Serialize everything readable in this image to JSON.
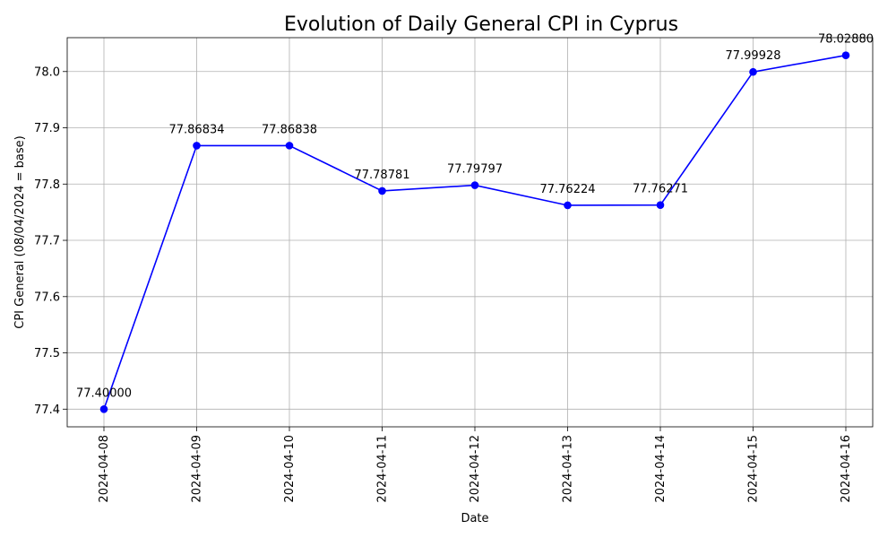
{
  "chart_data": {
    "type": "line",
    "title": "Evolution of Daily General CPI in Cyprus",
    "xlabel": "Date",
    "ylabel": "CPI General (08/04/2024 = base)",
    "x": [
      "2024-04-08",
      "2024-04-09",
      "2024-04-10",
      "2024-04-11",
      "2024-04-12",
      "2024-04-13",
      "2024-04-14",
      "2024-04-15",
      "2024-04-16"
    ],
    "series": [
      {
        "values": [
          77.4,
          77.86834,
          77.86838,
          77.78781,
          77.79797,
          77.76224,
          77.76271,
          77.99928,
          78.0288
        ],
        "value_labels": [
          "77.40000",
          "77.86834",
          "77.86838",
          "77.78781",
          "77.79797",
          "77.76224",
          "77.76271",
          "77.99928",
          "78.02880"
        ],
        "color": "#0000ff",
        "marker": "circle"
      }
    ],
    "ylim": [
      77.3686,
      78.0602
    ],
    "yticks": [
      77.4,
      77.5,
      77.6,
      77.7,
      77.8,
      77.9,
      78.0
    ],
    "ytick_labels": [
      "77.4",
      "77.5",
      "77.6",
      "77.7",
      "77.8",
      "77.9",
      "78.0"
    ],
    "grid": true,
    "legend": "none"
  }
}
